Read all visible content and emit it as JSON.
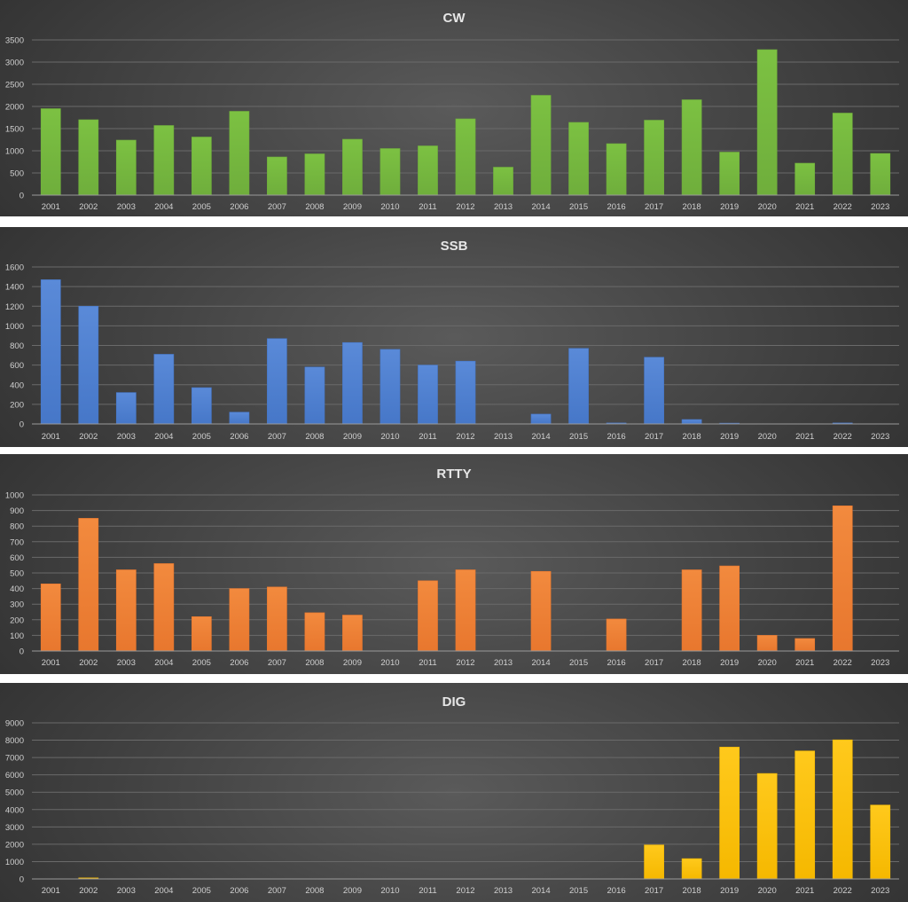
{
  "chart_data": [
    {
      "type": "bar",
      "title": "CW",
      "color": "#6fae3c",
      "color_light": "#7cc142",
      "ylim": [
        0,
        3500
      ],
      "yticks": [
        0,
        500,
        1000,
        1500,
        2000,
        2500,
        3000,
        3500
      ],
      "categories": [
        "2001",
        "2002",
        "2003",
        "2004",
        "2005",
        "2006",
        "2007",
        "2008",
        "2009",
        "2010",
        "2011",
        "2012",
        "2013",
        "2014",
        "2015",
        "2016",
        "2017",
        "2018",
        "2019",
        "2020",
        "2021",
        "2022",
        "2023"
      ],
      "values": [
        1950,
        1700,
        1240,
        1570,
        1310,
        1890,
        860,
        930,
        1260,
        1050,
        1110,
        1720,
        630,
        2250,
        1640,
        1160,
        1690,
        2150,
        970,
        3280,
        720,
        1850,
        940
      ],
      "grid": true,
      "legend": false
    },
    {
      "type": "bar",
      "title": "SSB",
      "color": "#4677c8",
      "color_light": "#5a8ad8",
      "ylim": [
        0,
        1600
      ],
      "yticks": [
        0,
        200,
        400,
        600,
        800,
        1000,
        1200,
        1400,
        1600
      ],
      "categories": [
        "2001",
        "2002",
        "2003",
        "2004",
        "2005",
        "2006",
        "2007",
        "2008",
        "2009",
        "2010",
        "2011",
        "2012",
        "2013",
        "2014",
        "2015",
        "2016",
        "2017",
        "2018",
        "2019",
        "2020",
        "2021",
        "2022",
        "2023"
      ],
      "values": [
        1470,
        1200,
        320,
        710,
        370,
        120,
        870,
        580,
        830,
        760,
        600,
        640,
        0,
        100,
        770,
        10,
        680,
        45,
        8,
        0,
        0,
        10,
        0
      ],
      "grid": true,
      "legend": false
    },
    {
      "type": "bar",
      "title": "RTTY",
      "color": "#e8772e",
      "color_light": "#f28a3e",
      "ylim": [
        0,
        1000
      ],
      "yticks": [
        0,
        100,
        200,
        300,
        400,
        500,
        600,
        700,
        800,
        900,
        1000
      ],
      "categories": [
        "2001",
        "2002",
        "2003",
        "2004",
        "2005",
        "2006",
        "2007",
        "2008",
        "2009",
        "2010",
        "2011",
        "2012",
        "2013",
        "2014",
        "2015",
        "2016",
        "2017",
        "2018",
        "2019",
        "2020",
        "2021",
        "2022",
        "2023"
      ],
      "values": [
        430,
        850,
        520,
        560,
        220,
        400,
        410,
        245,
        230,
        0,
        450,
        520,
        0,
        510,
        0,
        205,
        0,
        520,
        545,
        100,
        80,
        930,
        0
      ],
      "grid": true,
      "legend": false
    },
    {
      "type": "bar",
      "title": "DIG",
      "color": "#f5b800",
      "color_light": "#ffc91c",
      "ylim": [
        0,
        9000
      ],
      "yticks": [
        0,
        1000,
        2000,
        3000,
        4000,
        5000,
        6000,
        7000,
        8000,
        9000
      ],
      "categories": [
        "2001",
        "2002",
        "2003",
        "2004",
        "2005",
        "2006",
        "2007",
        "2008",
        "2009",
        "2010",
        "2011",
        "2012",
        "2013",
        "2014",
        "2015",
        "2016",
        "2017",
        "2018",
        "2019",
        "2020",
        "2021",
        "2022",
        "2023"
      ],
      "values": [
        0,
        60,
        0,
        0,
        0,
        0,
        0,
        0,
        0,
        0,
        0,
        0,
        0,
        0,
        0,
        0,
        1960,
        1170,
        7600,
        6080,
        7380,
        8020,
        4260
      ],
      "grid": true,
      "legend": false
    }
  ]
}
